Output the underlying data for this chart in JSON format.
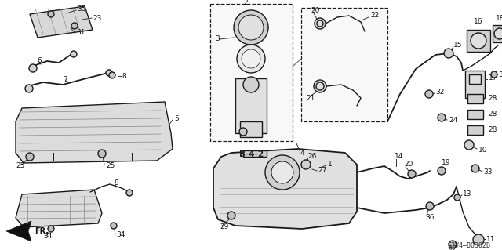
{
  "background_color": "#ffffff",
  "diagram_code": "S3V4–B0302B",
  "ref_code": "B-4-2",
  "fig_width": 6.4,
  "fig_height": 3.19,
  "dpi": 100,
  "image_b64": ""
}
